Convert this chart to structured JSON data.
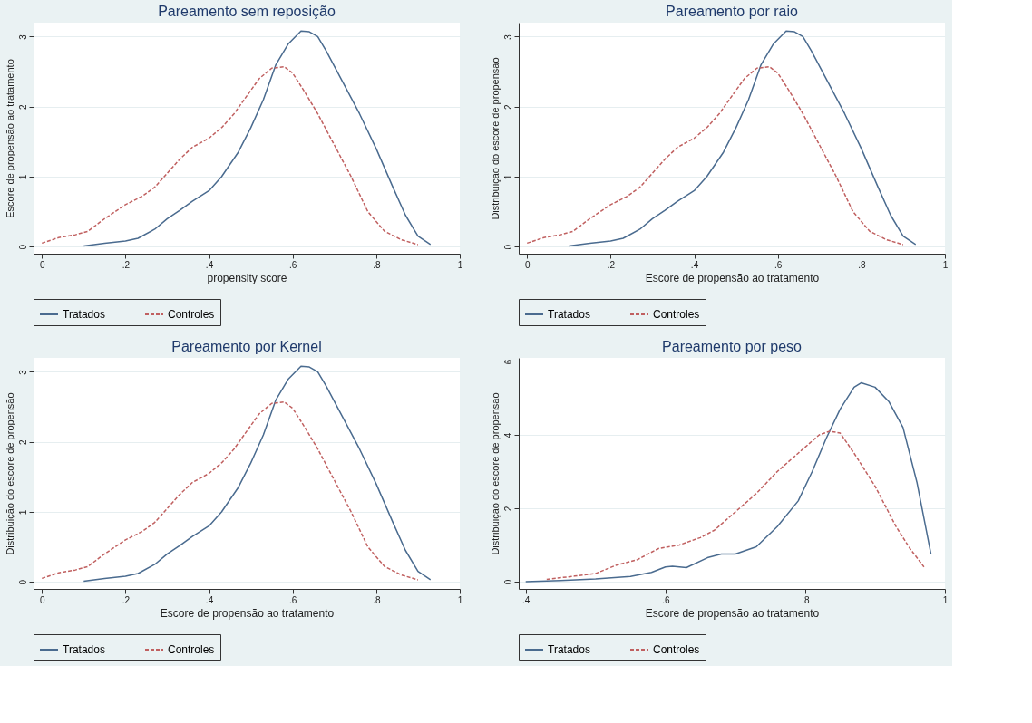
{
  "chart_data": [
    {
      "type": "line",
      "title": "Pareamento sem reposição",
      "xlabel": "propensity score",
      "ylabel": "Escore de propensão ao tratamento",
      "legend": "bottom",
      "grid": "y",
      "xlim": [
        -0.02,
        1.0
      ],
      "ylim": [
        -0.1,
        3.2
      ],
      "xticks": [
        0,
        {
          "value": 0.2,
          "label": ".2"
        },
        {
          "value": 0.4,
          "label": ".4"
        },
        {
          "value": 0.6,
          "label": ".6"
        },
        {
          "value": 0.8,
          "label": ".8"
        },
        1
      ],
      "yticks": [
        0,
        1,
        2,
        3
      ],
      "series": [
        {
          "name": "Tratados",
          "color": "#4a6b8f",
          "line_style": "solid",
          "x": [
            0.1,
            0.15,
            0.2,
            0.23,
            0.27,
            0.3,
            0.33,
            0.36,
            0.4,
            0.43,
            0.47,
            0.5,
            0.53,
            0.56,
            0.59,
            0.62,
            0.64,
            0.66,
            0.68,
            0.72,
            0.76,
            0.8,
            0.84,
            0.87,
            0.9,
            0.93
          ],
          "values": [
            0.01,
            0.05,
            0.08,
            0.12,
            0.25,
            0.4,
            0.52,
            0.65,
            0.8,
            1.0,
            1.35,
            1.7,
            2.1,
            2.6,
            2.9,
            3.08,
            3.07,
            3.0,
            2.8,
            2.35,
            1.9,
            1.4,
            0.85,
            0.45,
            0.15,
            0.03
          ]
        },
        {
          "name": "Controles",
          "color": "#c06060",
          "line_style": "dashed",
          "x": [
            0.0,
            0.04,
            0.08,
            0.11,
            0.15,
            0.2,
            0.24,
            0.27,
            0.3,
            0.33,
            0.36,
            0.4,
            0.43,
            0.46,
            0.49,
            0.52,
            0.55,
            0.58,
            0.6,
            0.63,
            0.66,
            0.7,
            0.74,
            0.78,
            0.82,
            0.86,
            0.9
          ],
          "values": [
            0.05,
            0.13,
            0.17,
            0.22,
            0.4,
            0.6,
            0.72,
            0.85,
            1.05,
            1.25,
            1.42,
            1.55,
            1.7,
            1.9,
            2.15,
            2.4,
            2.55,
            2.57,
            2.48,
            2.2,
            1.9,
            1.45,
            1.0,
            0.5,
            0.22,
            0.1,
            0.03
          ]
        }
      ]
    },
    {
      "type": "line",
      "title": "Pareamento por raio",
      "xlabel": "Escore de propensão ao tratamento",
      "ylabel": "Distribuição do escore de propensão",
      "legend": "bottom",
      "grid": "y",
      "xlim": [
        -0.02,
        1.0
      ],
      "ylim": [
        -0.1,
        3.2
      ],
      "xticks": [
        0,
        {
          "value": 0.2,
          "label": ".2"
        },
        {
          "value": 0.4,
          "label": ".4"
        },
        {
          "value": 0.6,
          "label": ".6"
        },
        {
          "value": 0.8,
          "label": ".8"
        },
        1
      ],
      "yticks": [
        0,
        1,
        2,
        3
      ],
      "series": [
        {
          "name": "Tratados",
          "color": "#4a6b8f",
          "line_style": "solid",
          "x": [
            0.1,
            0.15,
            0.2,
            0.23,
            0.27,
            0.3,
            0.33,
            0.36,
            0.4,
            0.43,
            0.47,
            0.5,
            0.53,
            0.56,
            0.59,
            0.62,
            0.64,
            0.66,
            0.68,
            0.72,
            0.76,
            0.8,
            0.84,
            0.87,
            0.9,
            0.93
          ],
          "values": [
            0.01,
            0.05,
            0.08,
            0.12,
            0.25,
            0.4,
            0.52,
            0.65,
            0.8,
            1.0,
            1.35,
            1.7,
            2.1,
            2.6,
            2.9,
            3.08,
            3.07,
            3.0,
            2.8,
            2.35,
            1.9,
            1.4,
            0.85,
            0.45,
            0.15,
            0.03
          ]
        },
        {
          "name": "Controles",
          "color": "#c06060",
          "line_style": "dashed",
          "x": [
            0.0,
            0.04,
            0.08,
            0.11,
            0.15,
            0.2,
            0.24,
            0.27,
            0.3,
            0.33,
            0.36,
            0.4,
            0.43,
            0.46,
            0.49,
            0.52,
            0.55,
            0.58,
            0.6,
            0.63,
            0.66,
            0.7,
            0.74,
            0.78,
            0.82,
            0.86,
            0.9
          ],
          "values": [
            0.05,
            0.13,
            0.17,
            0.22,
            0.4,
            0.6,
            0.72,
            0.85,
            1.05,
            1.25,
            1.42,
            1.55,
            1.7,
            1.9,
            2.15,
            2.4,
            2.55,
            2.57,
            2.48,
            2.2,
            1.9,
            1.45,
            1.0,
            0.5,
            0.22,
            0.1,
            0.03
          ]
        }
      ]
    },
    {
      "type": "line",
      "title": "Pareamento por Kernel",
      "xlabel": "Escore de propensão ao tratamento",
      "ylabel": "Distribuição do escore de propensão",
      "legend": "bottom",
      "grid": "y",
      "xlim": [
        -0.02,
        1.0
      ],
      "ylim": [
        -0.1,
        3.2
      ],
      "xticks": [
        0,
        {
          "value": 0.2,
          "label": ".2"
        },
        {
          "value": 0.4,
          "label": ".4"
        },
        {
          "value": 0.6,
          "label": ".6"
        },
        {
          "value": 0.8,
          "label": ".8"
        },
        1
      ],
      "yticks": [
        0,
        1,
        2,
        3
      ],
      "series": [
        {
          "name": "Tratados",
          "color": "#4a6b8f",
          "line_style": "solid",
          "x": [
            0.1,
            0.15,
            0.2,
            0.23,
            0.27,
            0.3,
            0.33,
            0.36,
            0.4,
            0.43,
            0.47,
            0.5,
            0.53,
            0.56,
            0.59,
            0.62,
            0.64,
            0.66,
            0.68,
            0.72,
            0.76,
            0.8,
            0.84,
            0.87,
            0.9,
            0.93
          ],
          "values": [
            0.01,
            0.05,
            0.08,
            0.12,
            0.25,
            0.4,
            0.52,
            0.65,
            0.8,
            1.0,
            1.35,
            1.7,
            2.1,
            2.6,
            2.9,
            3.08,
            3.07,
            3.0,
            2.8,
            2.35,
            1.9,
            1.4,
            0.85,
            0.45,
            0.15,
            0.03
          ]
        },
        {
          "name": "Controles",
          "color": "#c06060",
          "line_style": "dashed",
          "x": [
            0.0,
            0.04,
            0.08,
            0.11,
            0.15,
            0.2,
            0.24,
            0.27,
            0.3,
            0.33,
            0.36,
            0.4,
            0.43,
            0.46,
            0.49,
            0.52,
            0.55,
            0.58,
            0.6,
            0.63,
            0.66,
            0.7,
            0.74,
            0.78,
            0.82,
            0.86,
            0.9
          ],
          "values": [
            0.05,
            0.13,
            0.17,
            0.22,
            0.4,
            0.6,
            0.72,
            0.85,
            1.05,
            1.25,
            1.42,
            1.55,
            1.7,
            1.9,
            2.15,
            2.4,
            2.55,
            2.57,
            2.48,
            2.2,
            1.9,
            1.45,
            1.0,
            0.5,
            0.22,
            0.1,
            0.03
          ]
        }
      ]
    },
    {
      "type": "line",
      "title": "Pareamento por peso",
      "xlabel": "Escore de propensão ao tratamento",
      "ylabel": "Distribuição do escore de propensão",
      "legend": "bottom",
      "grid": "y",
      "xlim": [
        0.39,
        1.0
      ],
      "ylim": [
        -0.2,
        6.1
      ],
      "xticks": [
        {
          "value": 0.4,
          "label": ".4"
        },
        {
          "value": 0.6,
          "label": ".6"
        },
        {
          "value": 0.8,
          "label": ".8"
        },
        1
      ],
      "yticks": [
        0,
        2,
        4,
        6
      ],
      "series": [
        {
          "name": "Tratados",
          "color": "#4a6b8f",
          "line_style": "solid",
          "x": [
            0.4,
            0.45,
            0.5,
            0.55,
            0.58,
            0.6,
            0.61,
            0.63,
            0.66,
            0.68,
            0.7,
            0.73,
            0.76,
            0.79,
            0.81,
            0.83,
            0.85,
            0.87,
            0.88,
            0.9,
            0.92,
            0.94,
            0.96,
            0.98
          ],
          "values": [
            0.0,
            0.03,
            0.07,
            0.14,
            0.25,
            0.4,
            0.42,
            0.38,
            0.65,
            0.75,
            0.75,
            0.95,
            1.5,
            2.2,
            3.0,
            3.9,
            4.7,
            5.3,
            5.42,
            5.3,
            4.9,
            4.2,
            2.7,
            0.75
          ]
        },
        {
          "name": "Controles",
          "color": "#c06060",
          "line_style": "dashed",
          "x": [
            0.43,
            0.47,
            0.5,
            0.53,
            0.56,
            0.59,
            0.62,
            0.65,
            0.67,
            0.7,
            0.73,
            0.76,
            0.79,
            0.82,
            0.835,
            0.85,
            0.87,
            0.9,
            0.93,
            0.95,
            0.97
          ],
          "values": [
            0.06,
            0.15,
            0.22,
            0.45,
            0.6,
            0.9,
            1.0,
            1.2,
            1.4,
            1.9,
            2.4,
            3.0,
            3.5,
            4.0,
            4.1,
            4.05,
            3.5,
            2.6,
            1.5,
            0.9,
            0.4
          ]
        }
      ]
    }
  ]
}
